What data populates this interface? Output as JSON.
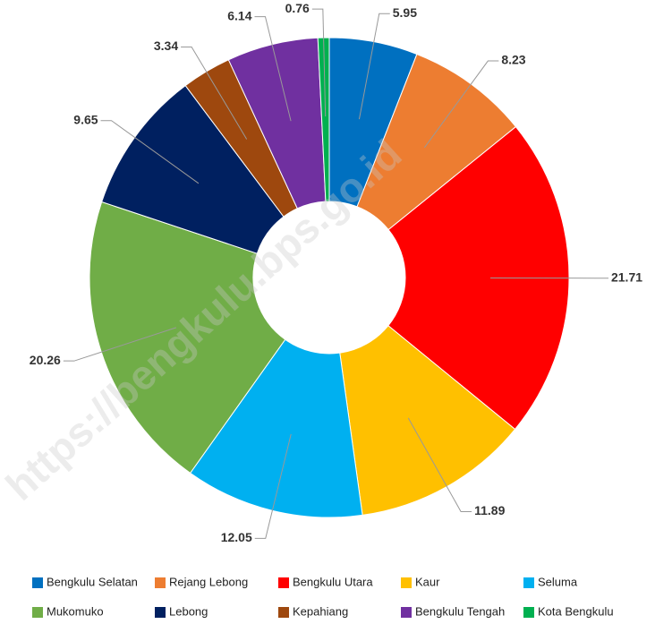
{
  "chart_data": {
    "type": "donut",
    "categories": [
      "Bengkulu Selatan",
      "Rejang Lebong",
      "Bengkulu Utara",
      "Kaur",
      "Seluma",
      "Mukomuko",
      "Lebong",
      "Kepahiang",
      "Bengkulu Tengah",
      "Kota Bengkulu"
    ],
    "values": [
      5.95,
      8.23,
      21.71,
      11.89,
      12.05,
      20.26,
      9.65,
      3.34,
      6.14,
      0.76
    ],
    "colors": [
      "#0070c0",
      "#ed7d31",
      "#ff0000",
      "#ffc000",
      "#00b0f0",
      "#70ad47",
      "#002060",
      "#9e480e",
      "#7030a0",
      "#00b050"
    ],
    "legend": "bottom",
    "watermark": "https://bengkulu.bps.go.id"
  }
}
